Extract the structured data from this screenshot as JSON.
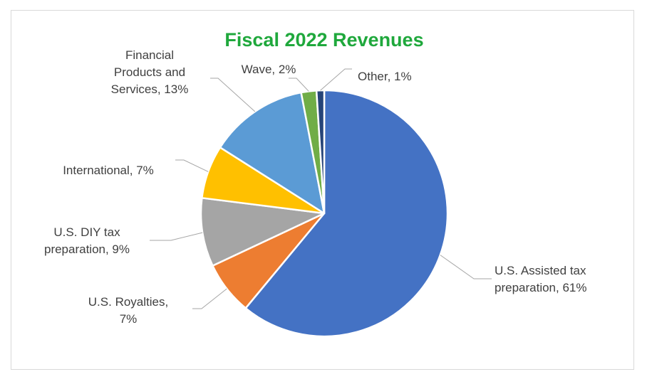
{
  "chart_data": {
    "type": "pie",
    "title": "Fiscal 2022 Revenues",
    "title_color": "#1fa83c",
    "start": "top",
    "direction": "clockwise",
    "slices": [
      {
        "name": "U.S. Assisted tax preparation",
        "value": 61,
        "label_lines": [
          "U.S. Assisted tax",
          "preparation, 61%"
        ],
        "color": "#4472c4"
      },
      {
        "name": "U.S. Royalties",
        "value": 7,
        "label_lines": [
          "U.S. Royalties,",
          "7%"
        ],
        "color": "#ed7d31"
      },
      {
        "name": "U.S. DIY tax preparation",
        "value": 9,
        "label_lines": [
          "U.S. DIY tax",
          "preparation, 9%"
        ],
        "color": "#a5a5a5"
      },
      {
        "name": "International",
        "value": 7,
        "label_lines": [
          "International, 7%"
        ],
        "color": "#ffc000"
      },
      {
        "name": "Financial Products and Services",
        "value": 13,
        "label_lines": [
          "Financial",
          "Products and",
          "Services, 13%"
        ],
        "color": "#5b9bd5"
      },
      {
        "name": "Wave",
        "value": 2,
        "label_lines": [
          "Wave, 2%"
        ],
        "color": "#70ad47"
      },
      {
        "name": "Other",
        "value": 1,
        "label_lines": [
          "Other, 1%"
        ],
        "color": "#264478"
      }
    ],
    "legend": "none"
  }
}
